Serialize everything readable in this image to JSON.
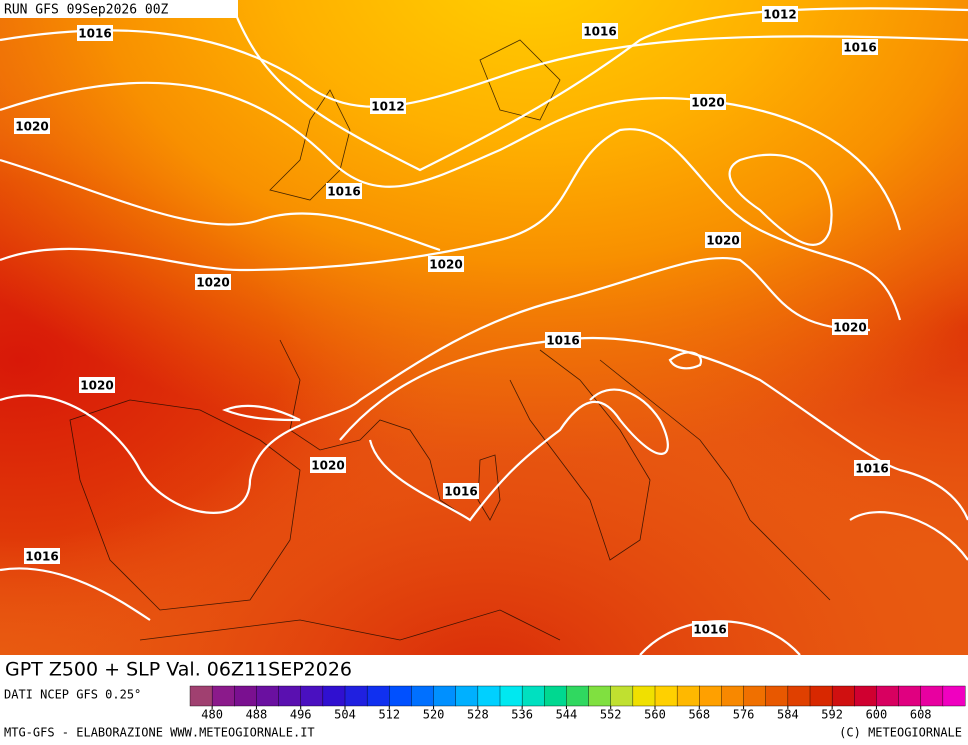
{
  "header": {
    "run": "RUN GFS 09Sep2026 00Z"
  },
  "isobar_labels": [
    "1012",
    "1016",
    "1016",
    "1016",
    "1012",
    "1020",
    "1020",
    "1016",
    "1020",
    "1020",
    "1020",
    "1020",
    "1016",
    "1020",
    "1020",
    "1016",
    "1016",
    "1016",
    "1016"
  ],
  "title": "GPT Z500 + SLP Val. 06Z11SEP2026",
  "source": "DATI NCEP GFS 0.25°",
  "colorbar": {
    "range": [
      476,
      616
    ],
    "ticks": [
      480,
      488,
      496,
      504,
      512,
      520,
      528,
      536,
      544,
      552,
      560,
      568,
      576,
      584,
      592,
      600,
      608
    ],
    "colors": [
      "#a04070",
      "#8b1a8b",
      "#7a1090",
      "#6a10a0",
      "#5a10b0",
      "#4a10c0",
      "#3010d0",
      "#2020e0",
      "#1030f0",
      "#0050ff",
      "#0070ff",
      "#0090ff",
      "#00b0ff",
      "#00d0ff",
      "#00e8f0",
      "#00e0c0",
      "#00d890",
      "#30d860",
      "#80e040",
      "#c0e030",
      "#f0e000",
      "#ffd000",
      "#ffb800",
      "#ffa000",
      "#f88800",
      "#f07000",
      "#e85800",
      "#e04000",
      "#d82800",
      "#d01010",
      "#d00030",
      "#d80060",
      "#e00080",
      "#e800a0",
      "#f000c0"
    ]
  },
  "footer": {
    "left": "MTG-GFS - ELABORAZIONE WWW.METEOGIORNALE.IT",
    "right": "(C) METEOGIORNALE"
  }
}
